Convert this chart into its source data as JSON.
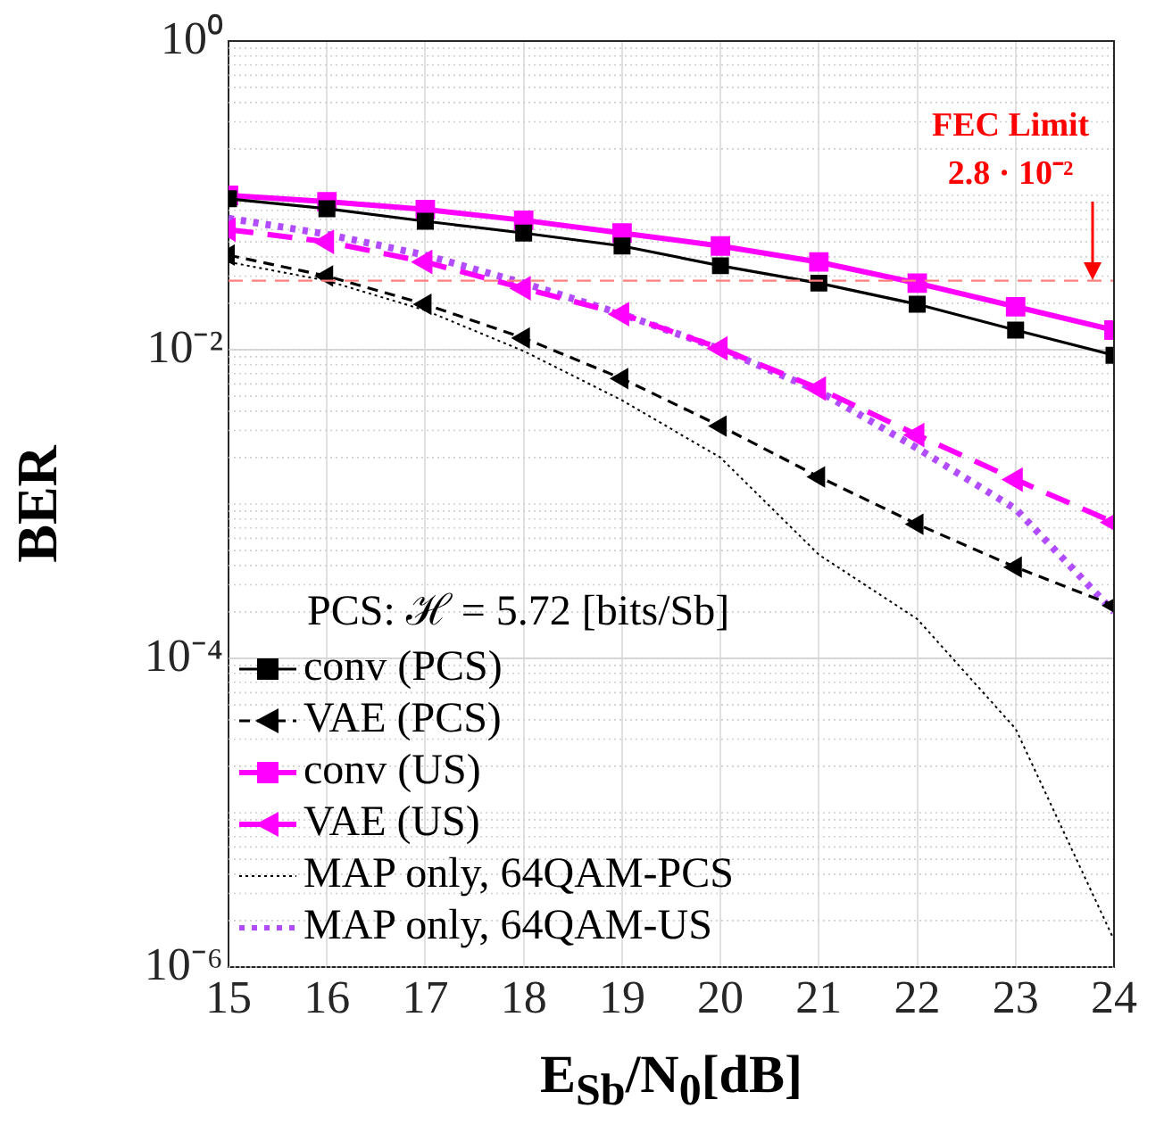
{
  "chart_data": {
    "type": "line",
    "xlabel": "E$_{Sb}$/N$_{0}$[dB]",
    "ylabel": "BER",
    "legend_title": "PCS: ℋ = 5.72 [bits/Sb]",
    "x": [
      15,
      16,
      17,
      18,
      19,
      20,
      21,
      22,
      23,
      24
    ],
    "series": [
      {
        "name": "conv (PCS)",
        "color": "#000000",
        "marker": "square",
        "line_style": "solid",
        "values": [
          0.095,
          0.082,
          0.068,
          0.057,
          0.047,
          0.035,
          0.027,
          0.0197,
          0.0134,
          0.0092
        ]
      },
      {
        "name": "VAE (PCS)",
        "color": "#000000",
        "marker": "triangle",
        "line_style": "dashed",
        "values": [
          0.041,
          0.03,
          0.0197,
          0.0119,
          0.0065,
          0.0032,
          0.0015,
          0.00074,
          0.00039,
          0.00022
        ]
      },
      {
        "name": "conv (US)",
        "color": "#ff00ff",
        "marker": "square",
        "line_style": "solid",
        "values": [
          0.1,
          0.091,
          0.081,
          0.069,
          0.057,
          0.047,
          0.037,
          0.027,
          0.019,
          0.0134
        ]
      },
      {
        "name": "VAE (US)",
        "color": "#ff00ff",
        "marker": "triangle",
        "line_style": "dashed",
        "values": [
          0.06,
          0.05,
          0.037,
          0.025,
          0.017,
          0.0102,
          0.0056,
          0.0028,
          0.00144,
          0.00076
        ]
      },
      {
        "name": "MAP only, 64QAM-PCS",
        "color": "#000000",
        "marker": "none",
        "line_style": "dotted",
        "values": [
          0.037,
          0.028,
          0.018,
          0.0098,
          0.0047,
          0.002,
          0.00047,
          0.00018,
          3.5e-05,
          1.5e-06
        ]
      },
      {
        "name": "MAP only, 64QAM-US",
        "color": "#b14cff",
        "marker": "none",
        "line_style": "dotted",
        "values": [
          0.071,
          0.056,
          0.041,
          0.027,
          0.017,
          0.0101,
          0.0054,
          0.0023,
          0.00093,
          0.0002
        ]
      }
    ],
    "xlim": [
      15,
      24
    ],
    "xticks": [
      15,
      16,
      17,
      18,
      19,
      20,
      21,
      22,
      23,
      24
    ],
    "ylim": [
      1e-06,
      1
    ],
    "yticks": [
      {
        "value": 1e-06,
        "label": "10⁻⁶"
      },
      {
        "value": 0.0001,
        "label": "10⁻⁴"
      },
      {
        "value": 0.01,
        "label": "10⁻²"
      },
      {
        "value": 1,
        "label": "10⁰"
      }
    ],
    "log": "y",
    "grid": true,
    "legend": "bottom left",
    "ref_lines": [
      {
        "axis": "y",
        "value": 0.028,
        "label": "FEC Limit\n2.8 · 10⁻²",
        "color": "#ff7f7f",
        "line_style": "dashed"
      }
    ]
  }
}
